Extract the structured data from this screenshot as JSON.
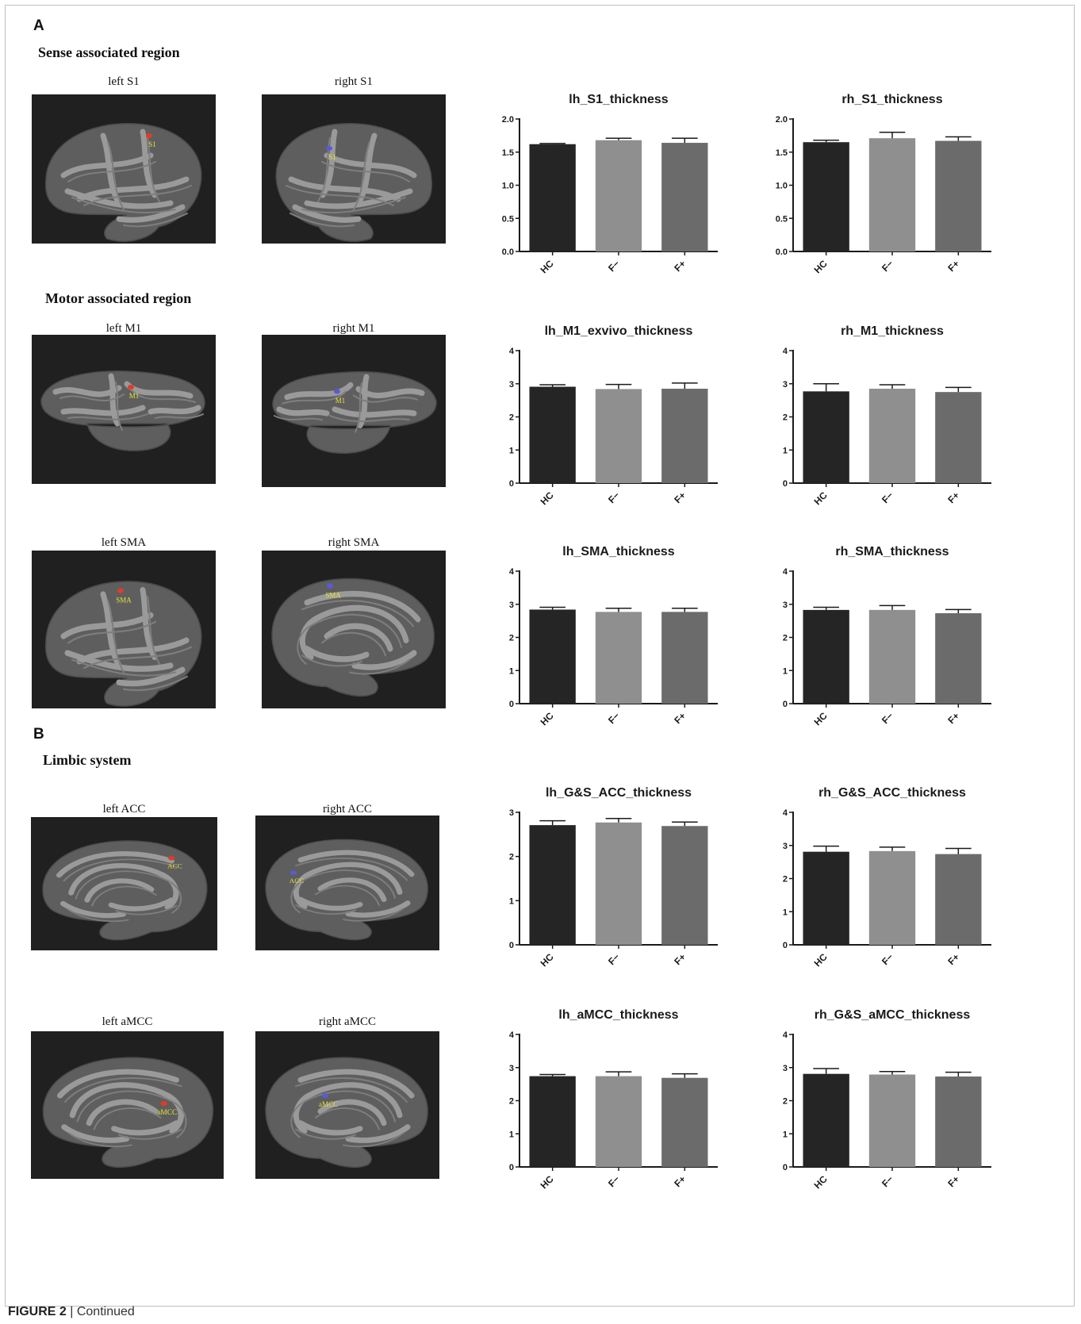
{
  "panels": {
    "A": {
      "letter": "A",
      "section1": "Sense associated region",
      "section2": "Motor associated region"
    },
    "B": {
      "letter": "B",
      "section1": "Limbic system"
    }
  },
  "brains": [
    {
      "id": "left-s1",
      "label": "left S1",
      "roi": "S1",
      "hemisphere": "left",
      "view": "lateral",
      "marker_color": "#e23a2a"
    },
    {
      "id": "right-s1",
      "label": "right S1",
      "roi": "S1",
      "hemisphere": "right",
      "view": "lateral",
      "marker_color": "#5a5ad8"
    },
    {
      "id": "left-m1",
      "label": "left M1",
      "roi": "M1",
      "hemisphere": "left",
      "view": "top",
      "marker_color": "#e23a2a"
    },
    {
      "id": "right-m1",
      "label": "right M1",
      "roi": "M1",
      "hemisphere": "right",
      "view": "top",
      "marker_color": "#5a5ad8"
    },
    {
      "id": "left-sma",
      "label": "left SMA",
      "roi": "SMA",
      "hemisphere": "left",
      "view": "lateral",
      "marker_color": "#e23a2a"
    },
    {
      "id": "right-sma",
      "label": "right SMA",
      "roi": "SMA",
      "hemisphere": "right",
      "view": "medial",
      "marker_color": "#5a5ad8"
    },
    {
      "id": "left-acc",
      "label": "left ACC",
      "roi": "ACC",
      "hemisphere": "left",
      "view": "medial",
      "marker_color": "#e23a2a"
    },
    {
      "id": "right-acc",
      "label": "right ACC",
      "roi": "ACC",
      "hemisphere": "right",
      "view": "medial",
      "marker_color": "#5a5ad8"
    },
    {
      "id": "left-amcc",
      "label": "left aMCC",
      "roi": "aMCC",
      "hemisphere": "left",
      "view": "medial",
      "marker_color": "#e23a2a"
    },
    {
      "id": "right-amcc",
      "label": "right aMCC",
      "roi": "aMCC",
      "hemisphere": "right",
      "view": "medial",
      "marker_color": "#5a5ad8"
    }
  ],
  "chart_data": [
    {
      "type": "bar",
      "title": "lh_S1_thickness",
      "categories": [
        "HC",
        "F−",
        "F+"
      ],
      "values": [
        1.62,
        1.68,
        1.64
      ],
      "errors": [
        0.01,
        0.03,
        0.07
      ],
      "ylim": [
        0,
        2.0
      ],
      "yticks": [
        "0.0",
        "0.5",
        "1.0",
        "1.5",
        "2.0"
      ],
      "colors": [
        "#252525",
        "#8f8f8f",
        "#6b6b6b"
      ],
      "grid": false
    },
    {
      "type": "bar",
      "title": "rh_S1_thickness",
      "categories": [
        "HC",
        "F−",
        "F+"
      ],
      "values": [
        1.65,
        1.71,
        1.67
      ],
      "errors": [
        0.03,
        0.09,
        0.06
      ],
      "ylim": [
        0,
        2.0
      ],
      "yticks": [
        "0.0",
        "0.5",
        "1.0",
        "1.5",
        "2.0"
      ],
      "colors": [
        "#252525",
        "#8f8f8f",
        "#6b6b6b"
      ],
      "grid": false
    },
    {
      "type": "bar",
      "title": "lh_M1_exvivo_thickness",
      "categories": [
        "HC",
        "F−",
        "F+"
      ],
      "values": [
        2.91,
        2.84,
        2.85
      ],
      "errors": [
        0.06,
        0.14,
        0.17
      ],
      "ylim": [
        0,
        4
      ],
      "yticks": [
        "0",
        "1",
        "2",
        "3",
        "4"
      ],
      "colors": [
        "#252525",
        "#8f8f8f",
        "#6b6b6b"
      ],
      "grid": false
    },
    {
      "type": "bar",
      "title": "rh_M1_thickness",
      "categories": [
        "HC",
        "F−",
        "F+"
      ],
      "values": [
        2.77,
        2.85,
        2.75
      ],
      "errors": [
        0.23,
        0.12,
        0.14
      ],
      "ylim": [
        0,
        4
      ],
      "yticks": [
        "0",
        "1",
        "2",
        "3",
        "4"
      ],
      "colors": [
        "#252525",
        "#8f8f8f",
        "#6b6b6b"
      ],
      "grid": false
    },
    {
      "type": "bar",
      "title": "lh_SMA_thickness",
      "categories": [
        "HC",
        "F−",
        "F+"
      ],
      "values": [
        2.84,
        2.77,
        2.77
      ],
      "errors": [
        0.07,
        0.11,
        0.11
      ],
      "ylim": [
        0,
        4
      ],
      "yticks": [
        "0",
        "1",
        "2",
        "3",
        "4"
      ],
      "colors": [
        "#252525",
        "#8f8f8f",
        "#6b6b6b"
      ],
      "grid": false
    },
    {
      "type": "bar",
      "title": "rh_SMA_thickness",
      "categories": [
        "HC",
        "F−",
        "F+"
      ],
      "values": [
        2.83,
        2.83,
        2.73
      ],
      "errors": [
        0.08,
        0.13,
        0.11
      ],
      "ylim": [
        0,
        4
      ],
      "yticks": [
        "0",
        "1",
        "2",
        "3",
        "4"
      ],
      "colors": [
        "#252525",
        "#8f8f8f",
        "#6b6b6b"
      ],
      "grid": false
    },
    {
      "type": "bar",
      "title": "lh_G&S_ACC_thickness",
      "categories": [
        "HC",
        "F−",
        "F+"
      ],
      "values": [
        2.71,
        2.77,
        2.69
      ],
      "errors": [
        0.1,
        0.09,
        0.09
      ],
      "ylim": [
        0,
        3
      ],
      "yticks": [
        "0",
        "1",
        "2",
        "3"
      ],
      "colors": [
        "#252525",
        "#8f8f8f",
        "#6b6b6b"
      ],
      "grid": false
    },
    {
      "type": "bar",
      "title": "rh_G&S_ACC_thickness",
      "categories": [
        "HC",
        "F−",
        "F+"
      ],
      "values": [
        2.81,
        2.83,
        2.74
      ],
      "errors": [
        0.17,
        0.12,
        0.17
      ],
      "ylim": [
        0,
        4
      ],
      "yticks": [
        "0",
        "1",
        "2",
        "3",
        "4"
      ],
      "colors": [
        "#252525",
        "#8f8f8f",
        "#6b6b6b"
      ],
      "grid": false
    },
    {
      "type": "bar",
      "title": "lh_aMCC_thickness",
      "categories": [
        "HC",
        "F−",
        "F+"
      ],
      "values": [
        2.74,
        2.74,
        2.69
      ],
      "errors": [
        0.05,
        0.13,
        0.12
      ],
      "ylim": [
        0,
        4
      ],
      "yticks": [
        "0",
        "1",
        "2",
        "3",
        "4"
      ],
      "colors": [
        "#252525",
        "#8f8f8f",
        "#6b6b6b"
      ],
      "grid": false
    },
    {
      "type": "bar",
      "title": "rh_G&S_aMCC_thickness",
      "categories": [
        "HC",
        "F−",
        "F+"
      ],
      "values": [
        2.81,
        2.79,
        2.73
      ],
      "errors": [
        0.16,
        0.09,
        0.13
      ],
      "ylim": [
        0,
        4
      ],
      "yticks": [
        "0",
        "1",
        "2",
        "3",
        "4"
      ],
      "colors": [
        "#252525",
        "#8f8f8f",
        "#6b6b6b"
      ],
      "grid": false
    }
  ],
  "caption": {
    "label": "FIGURE 2",
    "separator": " | ",
    "text": "Continued"
  },
  "colors": {
    "brain_bg": "#202020",
    "gyrus": "#5e5e5e",
    "sulcus": "#9a9a9a",
    "roi_label": "#e8e23a"
  }
}
